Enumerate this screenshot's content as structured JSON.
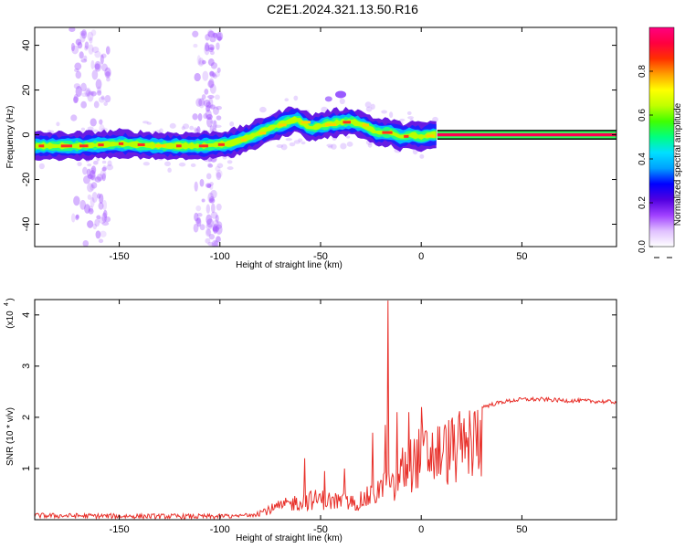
{
  "title": "C2E1.2024.321.13.50.R16",
  "chart_data": [
    {
      "type": "heatmap",
      "xlabel": "Height of straight line (km)",
      "ylabel": "Frequency (Hz)",
      "xlim": [
        -192,
        97
      ],
      "ylim": [
        -50,
        48
      ],
      "x_ticks": [
        -150,
        -100,
        -50,
        0,
        50
      ],
      "y_ticks": [
        -40,
        -20,
        0,
        20,
        40
      ],
      "colorbar": {
        "label": "Normalized spectral amplitude",
        "range": [
          0,
          1
        ],
        "ticks": [
          0.0,
          0.2,
          0.4,
          0.6,
          0.8
        ],
        "tick_labels": [
          "0.0",
          "0.2",
          "0.4",
          "0.6",
          "0.8"
        ],
        "colors": [
          "#ffffff",
          "#e0c0ff",
          "#a040ff",
          "#5000e0",
          "#0000ff",
          "#00a0ff",
          "#00e0ff",
          "#00ff80",
          "#40ff00",
          "#c0ff00",
          "#ffff00",
          "#ffa000",
          "#ff3000",
          "#ff0040",
          "#ff0080"
        ]
      },
      "ridge": {
        "x": [
          -192,
          -170,
          -150,
          -130,
          -110,
          -95,
          -85,
          -75,
          -62,
          -55,
          -45,
          -35,
          -28,
          -22,
          -15,
          -10,
          -5,
          0,
          5,
          8,
          97
        ],
        "y": [
          -5,
          -5,
          -4,
          -5,
          -5,
          -4,
          -1,
          3,
          7,
          3,
          5,
          6,
          4,
          1,
          1,
          -1,
          0,
          -1,
          0,
          0,
          0
        ]
      }
    },
    {
      "type": "line",
      "xlabel": "Height of straight line (km)",
      "ylabel": "SNR (10 * v/v)",
      "multiplier": "(x10",
      "multiplier_exp": "4",
      "multiplier_close": ")",
      "xlim": [
        -192,
        97
      ],
      "ylim": [
        0,
        4.3
      ],
      "x_ticks": [
        -150,
        -100,
        -50,
        0,
        50
      ],
      "y_ticks": [
        1,
        2,
        3,
        4
      ],
      "line_color": "#e8302a",
      "envelope": {
        "x": [
          -192,
          -150,
          -100,
          -90,
          -80,
          -70,
          -60,
          -50,
          -45,
          -40,
          -35,
          -30,
          -25,
          -20,
          -16,
          -15,
          -13,
          -10,
          -5,
          0,
          10,
          20,
          30,
          40,
          50,
          60,
          70,
          80,
          97
        ],
        "y": [
          0.08,
          0.07,
          0.06,
          0.1,
          0.2,
          0.35,
          0.5,
          0.55,
          0.5,
          0.5,
          0.45,
          0.5,
          0.65,
          0.85,
          0.9,
          0.85,
          0.8,
          1.3,
          1.5,
          1.7,
          1.8,
          1.95,
          2.2,
          2.3,
          2.35,
          2.35,
          2.33,
          2.32,
          2.3
        ]
      },
      "spikes": [
        {
          "x": -16.5,
          "y": 4.28
        },
        {
          "x": -58,
          "y": 1.2
        },
        {
          "x": -48,
          "y": 0.95
        },
        {
          "x": -38,
          "y": 1.0
        },
        {
          "x": -24,
          "y": 1.7
        },
        {
          "x": -18,
          "y": 1.85
        },
        {
          "x": -12,
          "y": 2.1
        },
        {
          "x": -6,
          "y": 2.1
        },
        {
          "x": 0,
          "y": 2.2
        }
      ]
    }
  ]
}
